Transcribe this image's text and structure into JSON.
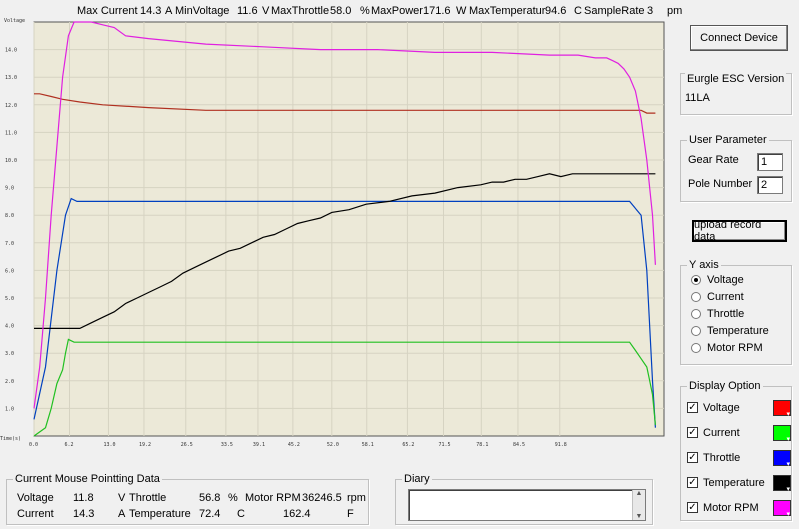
{
  "header": {
    "max_current_label": "Max Current",
    "max_current": "14.3",
    "max_current_unit": "A",
    "min_voltage_label": "MinVoltage",
    "min_voltage": "11.6",
    "min_voltage_unit": "V",
    "max_throttle_label": "MaxThrottle",
    "max_throttle": "58.0",
    "max_throttle_unit": "%",
    "max_power_label": "MaxPower",
    "max_power": "171.6",
    "max_power_unit": "W",
    "max_temp_label": "MaxTemperatur",
    "max_temp": "94.6",
    "max_temp_unit": "C",
    "sample_rate_label": "SampleRate",
    "sample_rate": "3",
    "sample_rate_unit": "pm"
  },
  "chart_data": {
    "type": "line",
    "ylabel": "Voltage",
    "xlabel": "Time(s)",
    "ylim": [
      0,
      15
    ],
    "xlim": [
      0,
      110
    ],
    "y_ticks": [
      "1.0",
      "2.0",
      "3.0",
      "4.0",
      "5.0",
      "6.0",
      "7.0",
      "8.0",
      "9.0",
      "10.0",
      "11.0",
      "12.0",
      "13.0",
      "14.0"
    ],
    "x_ticks": [
      "0.0",
      "6.2",
      "13.0",
      "19.2",
      "26.5",
      "33.5",
      "39.1",
      "45.2",
      "52.0",
      "58.1",
      "65.2",
      "71.5",
      "78.1",
      "84.5",
      "91.8"
    ],
    "grid": true,
    "series": [
      {
        "name": "Voltage",
        "color": "#b03020",
        "x": [
          0,
          1,
          3,
          5,
          8,
          12,
          20,
          30,
          40,
          50,
          60,
          70,
          80,
          90,
          100,
          105,
          106,
          107,
          108.5
        ],
        "y": [
          12.4,
          12.4,
          12.3,
          12.2,
          12.1,
          12.0,
          11.9,
          11.8,
          11.8,
          11.8,
          11.8,
          11.8,
          11.8,
          11.8,
          11.8,
          11.8,
          11.8,
          11.7,
          11.7
        ]
      },
      {
        "name": "Current",
        "color": "#0040c0",
        "x": [
          0,
          2,
          4,
          5.5,
          6.5,
          7.5,
          20,
          40,
          60,
          80,
          100,
          104,
          106,
          107,
          108,
          108.5
        ],
        "y": [
          0.6,
          2.5,
          6.0,
          8.0,
          8.6,
          8.5,
          8.5,
          8.5,
          8.5,
          8.5,
          8.5,
          8.5,
          8.0,
          6.0,
          2.0,
          0.3
        ]
      },
      {
        "name": "Throttle",
        "color": "#20c020",
        "x": [
          0,
          2,
          3,
          4,
          5,
          5.5,
          6,
          7,
          20,
          40,
          60,
          80,
          100,
          104,
          105,
          106,
          107,
          107.5,
          108,
          108.5
        ],
        "y": [
          0,
          0.3,
          1.0,
          1.9,
          2.4,
          3.0,
          3.5,
          3.4,
          3.4,
          3.4,
          3.4,
          3.4,
          3.4,
          3.4,
          3.1,
          2.8,
          2.5,
          2.0,
          1.5,
          0.4
        ]
      },
      {
        "name": "Temperature",
        "color": "#000000",
        "x": [
          0,
          8,
          10,
          12,
          14,
          16,
          18,
          20,
          22,
          24,
          26,
          28,
          30,
          32,
          34,
          36,
          38,
          40,
          42,
          44,
          46,
          48,
          50,
          52,
          55,
          58,
          62,
          66,
          70,
          74,
          78,
          80,
          82,
          84,
          86,
          88,
          90,
          92,
          94,
          96,
          98,
          100,
          102,
          104,
          106,
          108.5
        ],
        "y": [
          3.9,
          3.9,
          4.1,
          4.3,
          4.5,
          4.8,
          5.0,
          5.2,
          5.4,
          5.6,
          5.9,
          6.1,
          6.3,
          6.5,
          6.7,
          6.8,
          7.0,
          7.2,
          7.3,
          7.5,
          7.7,
          7.8,
          7.9,
          8.1,
          8.2,
          8.4,
          8.5,
          8.7,
          8.8,
          9.0,
          9.1,
          9.2,
          9.2,
          9.3,
          9.3,
          9.4,
          9.5,
          9.4,
          9.5,
          9.5,
          9.5,
          9.5,
          9.5,
          9.5,
          9.5,
          9.5
        ]
      },
      {
        "name": "Motor RPM",
        "color": "#e020e0",
        "x": [
          0,
          1,
          2,
          3,
          4,
          5,
          6,
          7,
          8,
          10,
          12,
          14,
          16,
          20,
          30,
          40,
          50,
          60,
          70,
          80,
          90,
          95,
          98,
          100,
          101,
          102,
          103,
          104,
          105,
          106,
          107,
          108,
          108.5
        ],
        "y": [
          1.0,
          2.5,
          5.0,
          8.0,
          10.5,
          13.0,
          14.5,
          15.0,
          15.0,
          15.0,
          14.9,
          14.8,
          14.5,
          14.4,
          14.2,
          14.1,
          14.0,
          14.0,
          13.9,
          13.9,
          13.8,
          13.8,
          13.7,
          13.7,
          13.6,
          13.5,
          13.3,
          13.0,
          12.5,
          11.5,
          10.0,
          8.0,
          6.2
        ]
      }
    ]
  },
  "connect_label": "Connect Device",
  "esc_version": {
    "title": "Eurgle ESC Version",
    "value": "11LA"
  },
  "user_param": {
    "title": "User Parameter",
    "gear_label": "Gear Rate",
    "gear_value": "1",
    "pole_label": "Pole Number",
    "pole_value": "2"
  },
  "upload_label": "upload record data",
  "y_axis": {
    "title": "Y axis",
    "options": [
      "Voltage",
      "Current",
      "Throttle",
      "Temperature",
      "Motor RPM"
    ],
    "selected": 0
  },
  "display": {
    "title": "Display Option",
    "items": [
      {
        "label": "Voltage",
        "color": "#ff0000"
      },
      {
        "label": "Current",
        "color": "#00ff00"
      },
      {
        "label": "Throttle",
        "color": "#0000ff"
      },
      {
        "label": "Temperature",
        "color": "#000000"
      },
      {
        "label": "Motor RPM",
        "color": "#ff00ff"
      }
    ],
    "check": "✓"
  },
  "mouse_data": {
    "title": "Current Mouse Pointting Data",
    "voltage_label": "Voltage",
    "voltage": "11.8",
    "voltage_unit": "V",
    "throttle_label": "Throttle",
    "throttle": "56.8",
    "throttle_unit": "%",
    "rpm_label": "Motor RPM",
    "rpm": "36246.5",
    "rpm_unit": "rpm",
    "current_label": "Current",
    "current": "14.3",
    "current_unit": "A",
    "temp_label": "Temperature",
    "temp": "72.4",
    "temp_unit": "C",
    "extra": "162.4",
    "extra_unit": "F"
  },
  "diary": {
    "title": "Diary",
    "scroll_up": "▲",
    "scroll_down": "▼"
  }
}
